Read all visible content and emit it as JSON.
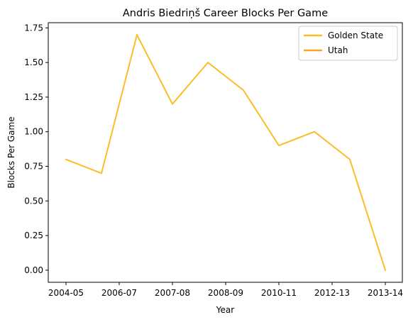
{
  "chart_data": {
    "type": "line",
    "title": "Andris Biedriņš Career Blocks Per Game",
    "xlabel": "Year",
    "ylabel": "Blocks Per Game",
    "x_ticks": [
      "2004-05",
      "2006-07",
      "2007-08",
      "2008-09",
      "2010-11",
      "2012-13",
      "2013-14"
    ],
    "y_ticks": [
      "0.00",
      "0.25",
      "0.50",
      "0.75",
      "1.00",
      "1.25",
      "1.50",
      "1.75"
    ],
    "ylim": [
      -0.0875,
      1.7875
    ],
    "x_count": 10,
    "series": [
      {
        "name": "Golden State",
        "color": "#fbbc28",
        "values": [
          0.8,
          0.7,
          1.7,
          1.2,
          1.5,
          1.3,
          0.9,
          1.0,
          0.8,
          0.0
        ]
      },
      {
        "name": "Utah",
        "color": "#f7a324",
        "values": []
      }
    ],
    "legend_position": "top-right",
    "grid": false
  }
}
